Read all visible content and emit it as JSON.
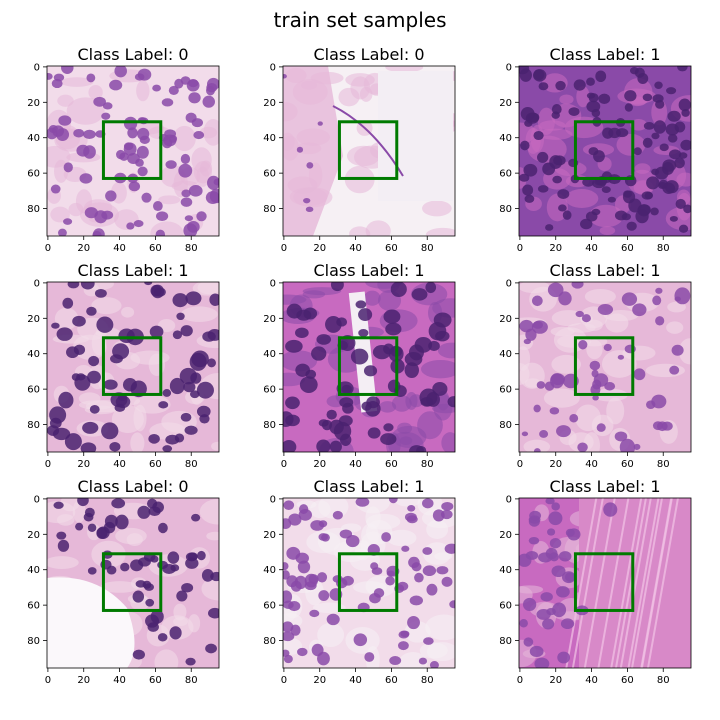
{
  "figure": {
    "title": "train set samples",
    "bbox_color": "#007a00",
    "axis_ticks": [
      "0",
      "20",
      "40",
      "60",
      "80"
    ]
  },
  "panels": [
    {
      "title": "Class Label: 0",
      "label": 0,
      "tissue": "dense-nuclei-pale"
    },
    {
      "title": "Class Label: 0",
      "label": 0,
      "tissue": "mostly-empty-white"
    },
    {
      "title": "Class Label: 1",
      "label": 1,
      "tissue": "dense-dark-purple"
    },
    {
      "title": "Class Label: 1",
      "label": 1,
      "tissue": "mixed-pink-purple"
    },
    {
      "title": "Class Label: 1",
      "label": 1,
      "tissue": "purple-with-vessel"
    },
    {
      "title": "Class Label: 1",
      "label": 1,
      "tissue": "fibrous-pink-purple"
    },
    {
      "title": "Class Label: 0",
      "label": 0,
      "tissue": "pink-with-white-lumen"
    },
    {
      "title": "Class Label: 1",
      "label": 1,
      "tissue": "pale-cells-dense-nuclei"
    },
    {
      "title": "Class Label: 1",
      "label": 1,
      "tissue": "pink-stroma-purple-left"
    }
  ],
  "colors": {
    "pink": "#e6b8d8",
    "light_pink": "#f2dcea",
    "purple": "#8a4aa8",
    "dark_purple": "#4a2270",
    "white": "#f6f0f4",
    "magenta": "#c86ac0"
  }
}
